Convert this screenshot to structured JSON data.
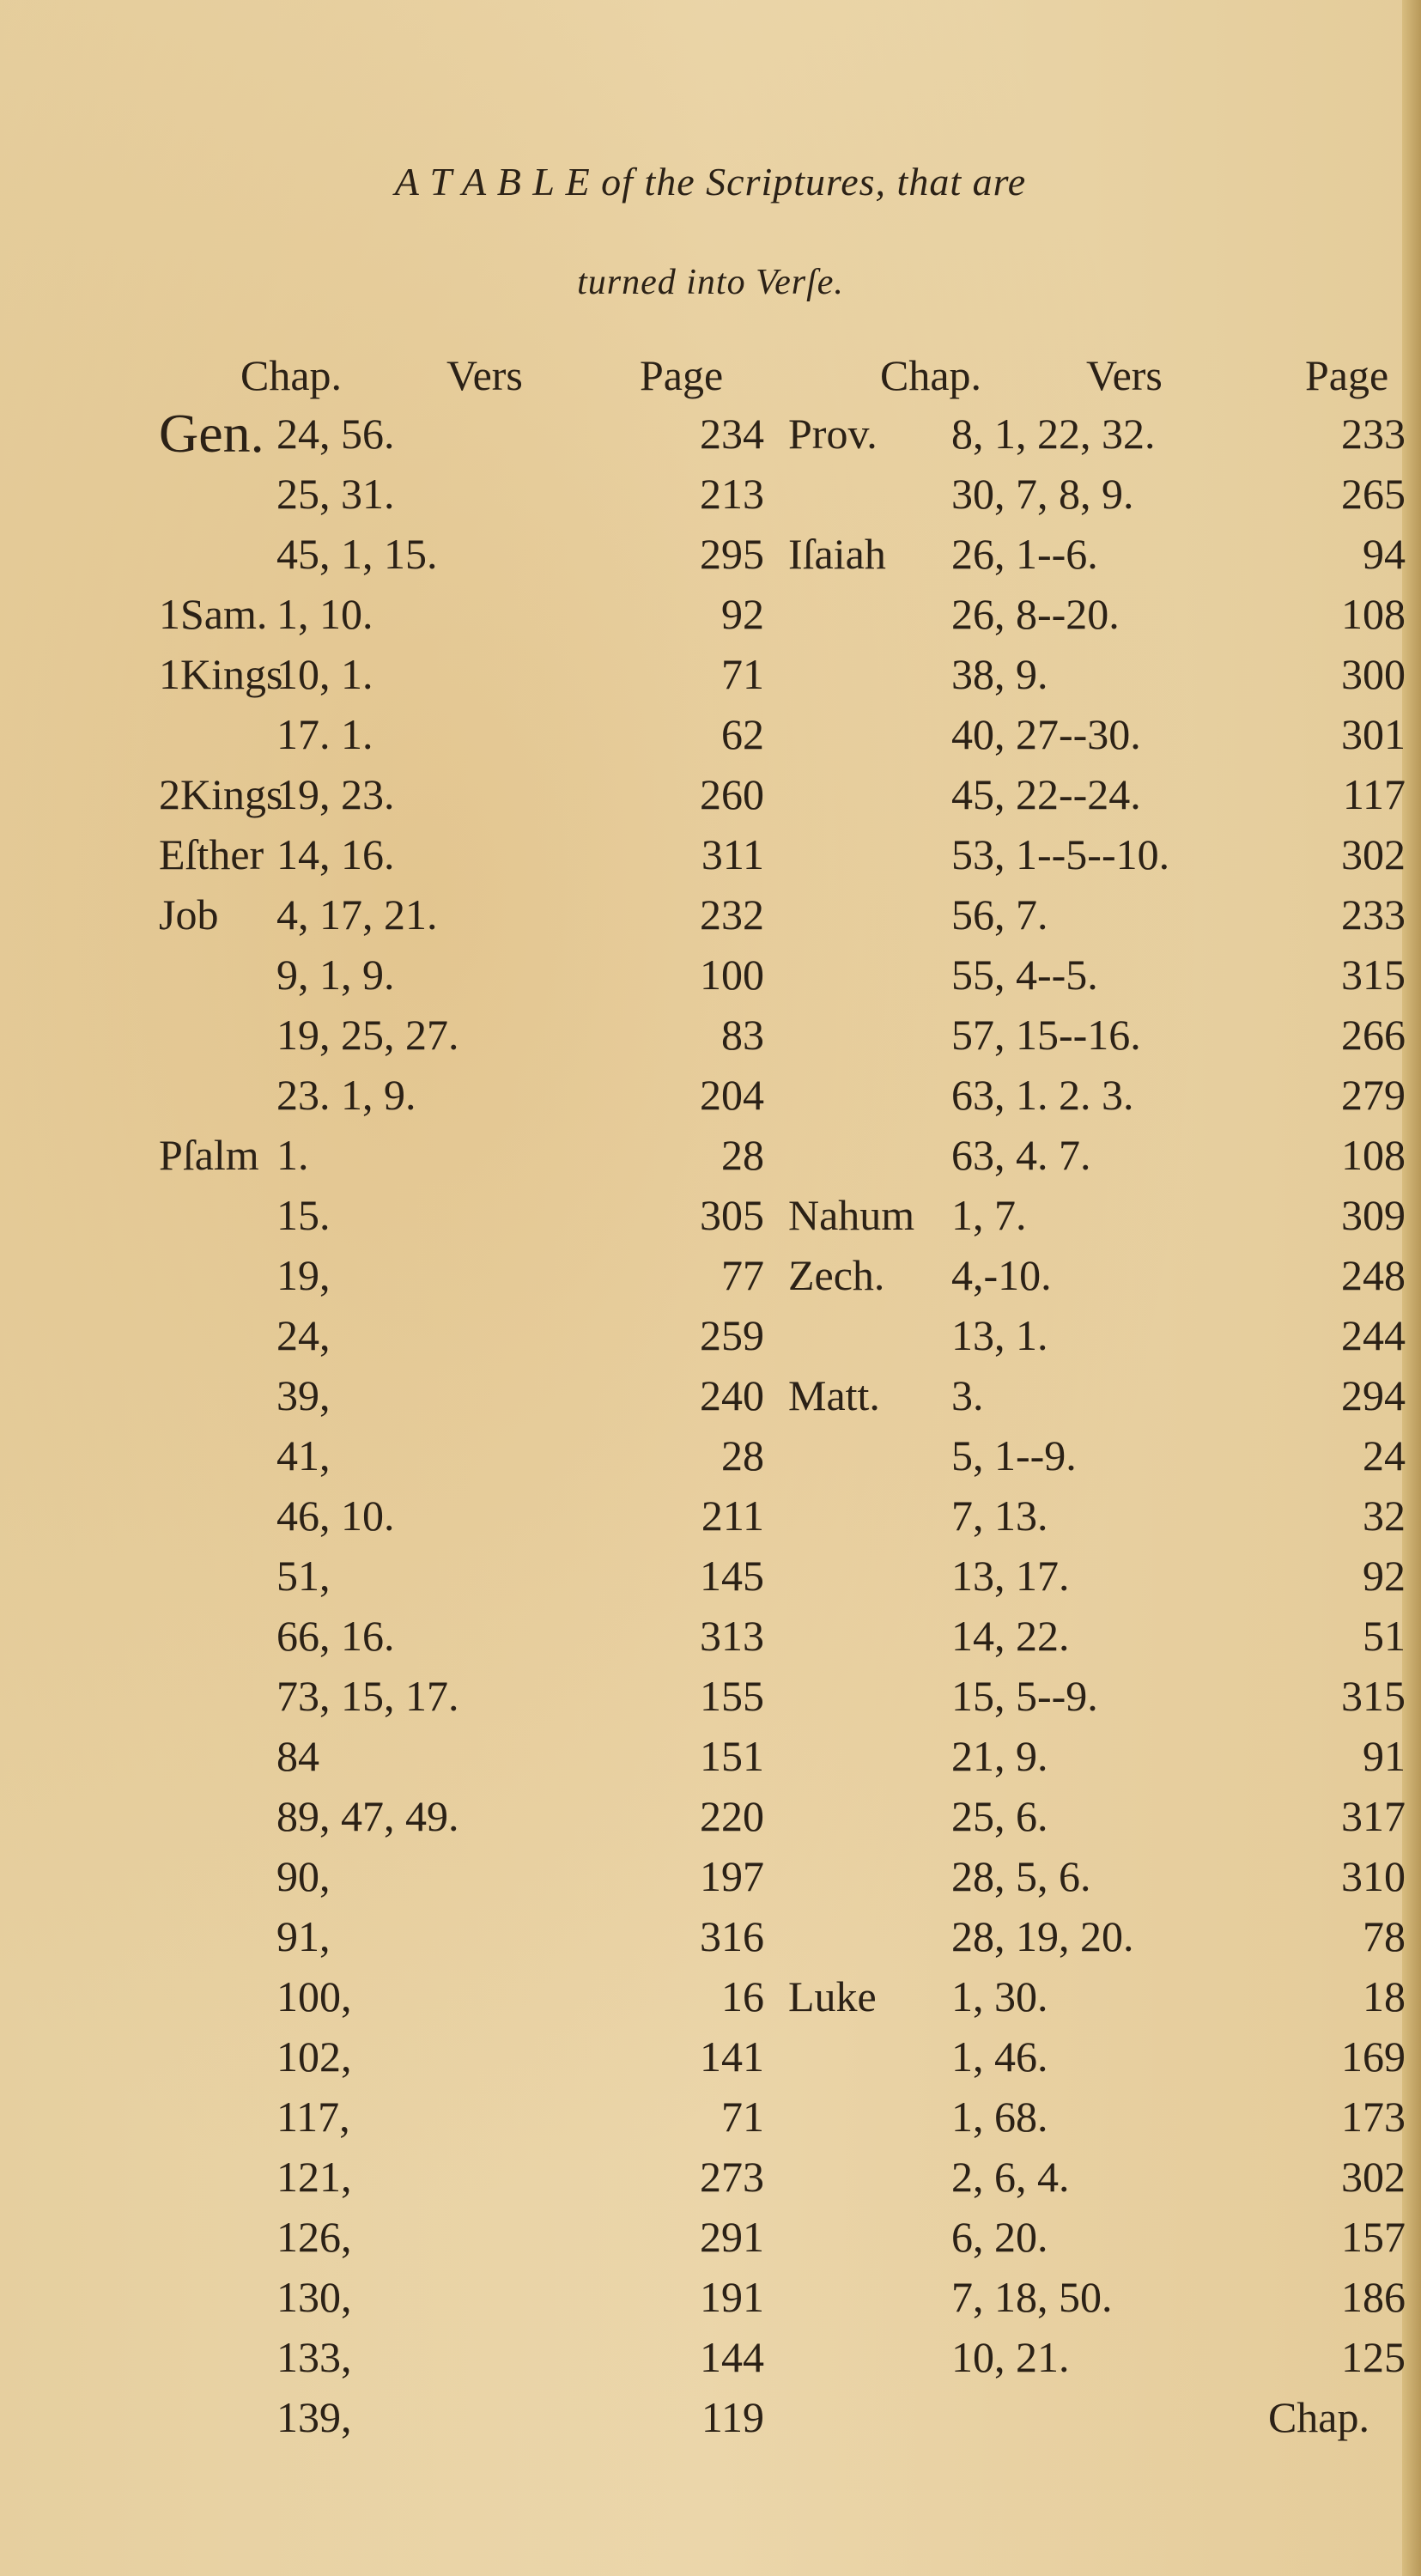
{
  "title": {
    "line1": "A T A B L E of the Scriptures, that are",
    "line2": "turned into Verſe."
  },
  "headers": {
    "left": [
      "Chap.",
      "Vers",
      "Page"
    ],
    "right": [
      "Chap.",
      "Vers",
      "Page"
    ]
  },
  "rows": [
    {
      "lb": "Gen.",
      "lcv": "24, 56.",
      "lp": "234",
      "rb": "Prov.",
      "rcv": "8, 1, 22, 32.",
      "rp": "233"
    },
    {
      "lb": "",
      "lcv": "25, 31.",
      "lp": "213",
      "rb": "",
      "rcv": "30, 7, 8, 9.",
      "rp": "265"
    },
    {
      "lb": "",
      "lcv": "45, 1, 15.",
      "lp": "295",
      "rb": "Iſaiah",
      "rcv": "26, 1--6.",
      "rp": "94"
    },
    {
      "lb": "1Sam.",
      "lcv": "1, 10.",
      "lp": "92",
      "rb": "",
      "rcv": "26, 8--20.",
      "rp": "108"
    },
    {
      "lb": "1Kings",
      "lcv": "10, 1.",
      "lp": "71",
      "rb": "",
      "rcv": "38, 9.",
      "rp": "300"
    },
    {
      "lb": "",
      "lcv": "17. 1.",
      "lp": "62",
      "rb": "",
      "rcv": "40, 27--30.",
      "rp": "301"
    },
    {
      "lb": "2Kings",
      "lcv": "19, 23.",
      "lp": "260",
      "rb": "",
      "rcv": "45, 22--24.",
      "rp": "117"
    },
    {
      "lb": "Eſther",
      "lcv": "14, 16.",
      "lp": "311",
      "rb": "",
      "rcv": "53, 1--5--10.",
      "rp": "302"
    },
    {
      "lb": "Job",
      "lcv": "4, 17, 21.",
      "lp": "232",
      "rb": "",
      "rcv": "56, 7.",
      "rp": "233"
    },
    {
      "lb": "",
      "lcv": "9, 1, 9.",
      "lp": "100",
      "rb": "",
      "rcv": "55, 4--5.",
      "rp": "315"
    },
    {
      "lb": "",
      "lcv": "19, 25, 27.",
      "lp": "83",
      "rb": "",
      "rcv": "57, 15--16.",
      "rp": "266"
    },
    {
      "lb": "",
      "lcv": "23. 1, 9.",
      "lp": "204",
      "rb": "",
      "rcv": "63, 1. 2. 3.",
      "rp": "279"
    },
    {
      "lb": "Pſalm",
      "lcv": "1.",
      "lp": "28",
      "rb": "",
      "rcv": "63, 4. 7.",
      "rp": "108"
    },
    {
      "lb": "",
      "lcv": "15.",
      "lp": "305",
      "rb": "Nahum",
      "rcv": "1, 7.",
      "rp": "309"
    },
    {
      "lb": "",
      "lcv": "19,",
      "lp": "77",
      "rb": "Zech.",
      "rcv": "4,-10.",
      "rp": "248"
    },
    {
      "lb": "",
      "lcv": "24,",
      "lp": "259",
      "rb": "",
      "rcv": "13, 1.",
      "rp": "244"
    },
    {
      "lb": "",
      "lcv": "39,",
      "lp": "240",
      "rb": "Matt.",
      "rcv": "3.",
      "rp": "294"
    },
    {
      "lb": "",
      "lcv": "41,",
      "lp": "28",
      "rb": "",
      "rcv": "5, 1--9.",
      "rp": "24"
    },
    {
      "lb": "",
      "lcv": "46, 10.",
      "lp": "211",
      "rb": "",
      "rcv": "7, 13.",
      "rp": "32"
    },
    {
      "lb": "",
      "lcv": "51,",
      "lp": "145",
      "rb": "",
      "rcv": "13, 17.",
      "rp": "92"
    },
    {
      "lb": "",
      "lcv": "66, 16.",
      "lp": "313",
      "rb": "",
      "rcv": "14, 22.",
      "rp": "51"
    },
    {
      "lb": "",
      "lcv": "73, 15, 17.",
      "lp": "155",
      "rb": "",
      "rcv": "15, 5--9.",
      "rp": "315"
    },
    {
      "lb": "",
      "lcv": "84",
      "lp": "151",
      "rb": "",
      "rcv": "21, 9.",
      "rp": "91"
    },
    {
      "lb": "",
      "lcv": "89, 47, 49.",
      "lp": "220",
      "rb": "",
      "rcv": "25, 6.",
      "rp": "317"
    },
    {
      "lb": "",
      "lcv": "90,",
      "lp": "197",
      "rb": "",
      "rcv": "28, 5, 6.",
      "rp": "310"
    },
    {
      "lb": "",
      "lcv": "91,",
      "lp": "316",
      "rb": "",
      "rcv": "28, 19, 20.",
      "rp": "78"
    },
    {
      "lb": "",
      "lcv": "100,",
      "lp": "16",
      "rb": "Luke",
      "rcv": "1, 30.",
      "rp": "18"
    },
    {
      "lb": "",
      "lcv": "102,",
      "lp": "141",
      "rb": "",
      "rcv": "1, 46.",
      "rp": "169"
    },
    {
      "lb": "",
      "lcv": "117,",
      "lp": "71",
      "rb": "",
      "rcv": "1, 68.",
      "rp": "173"
    },
    {
      "lb": "",
      "lcv": "121,",
      "lp": "273",
      "rb": "",
      "rcv": "2, 6, 4.",
      "rp": "302"
    },
    {
      "lb": "",
      "lcv": "126,",
      "lp": "291",
      "rb": "",
      "rcv": "6, 20.",
      "rp": "157"
    },
    {
      "lb": "",
      "lcv": "130,",
      "lp": "191",
      "rb": "",
      "rcv": "7, 18, 50.",
      "rp": "186"
    },
    {
      "lb": "",
      "lcv": "133,",
      "lp": "144",
      "rb": "",
      "rcv": "10, 21.",
      "rp": "125"
    },
    {
      "lb": "",
      "lcv": "139,",
      "lp": "119",
      "rb": "",
      "rcv": "",
      "rp": ""
    }
  ],
  "catchword": "Chap."
}
